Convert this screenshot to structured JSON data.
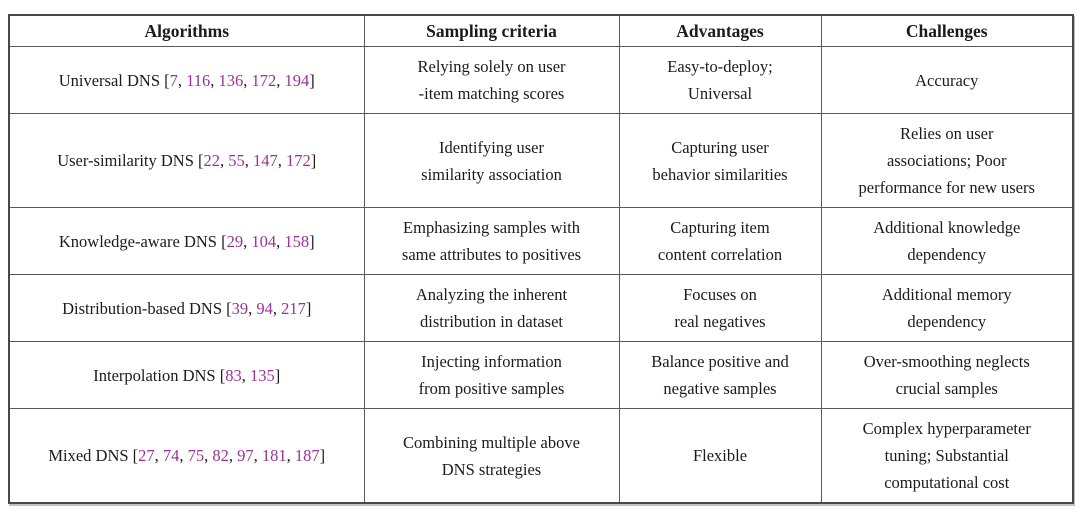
{
  "colors": {
    "text": "#1b1b1b",
    "citation": "#993399",
    "border": "#5a5a5a"
  },
  "table": {
    "headers": [
      "Algorithms",
      "Sampling criteria",
      "Advantages",
      "Challenges"
    ],
    "punctuation": {
      "open": "[",
      "close": "]",
      "separator": ", "
    },
    "rows": [
      {
        "algorithm": "Universal DNS",
        "citations": [
          "7",
          "116",
          "136",
          "172",
          "194"
        ],
        "sampling_criteria": [
          "Relying solely on user",
          "-item matching scores"
        ],
        "advantages": [
          "Easy-to-deploy;",
          "Universal"
        ],
        "challenges": [
          "Accuracy"
        ]
      },
      {
        "algorithm": "User-similarity DNS",
        "citations": [
          "22",
          "55",
          "147",
          "172"
        ],
        "sampling_criteria": [
          "Identifying user",
          "similarity association"
        ],
        "advantages": [
          "Capturing user",
          "behavior similarities"
        ],
        "challenges": [
          "Relies on user",
          "associations; Poor",
          "performance for new users"
        ]
      },
      {
        "algorithm": "Knowledge-aware DNS",
        "citations": [
          "29",
          "104",
          "158"
        ],
        "sampling_criteria": [
          "Emphasizing samples with",
          "same attributes to positives"
        ],
        "advantages": [
          "Capturing item",
          "content correlation"
        ],
        "challenges": [
          "Additional knowledge",
          "dependency"
        ]
      },
      {
        "algorithm": "Distribution-based DNS",
        "citations": [
          "39",
          "94",
          "217"
        ],
        "sampling_criteria": [
          "Analyzing the inherent",
          "distribution in dataset"
        ],
        "advantages": [
          "Focuses on",
          "real negatives"
        ],
        "challenges": [
          "Additional memory",
          "dependency"
        ]
      },
      {
        "algorithm": "Interpolation DNS",
        "citations": [
          "83",
          "135"
        ],
        "sampling_criteria": [
          "Injecting information",
          "from positive samples"
        ],
        "advantages": [
          "Balance positive and",
          "negative samples"
        ],
        "challenges": [
          "Over-smoothing neglects",
          "crucial samples"
        ]
      },
      {
        "algorithm": "Mixed DNS",
        "citations": [
          "27",
          "74",
          "75",
          "82",
          "97",
          "181",
          "187"
        ],
        "sampling_criteria": [
          "Combining multiple above",
          "DNS strategies"
        ],
        "advantages": [
          "Flexible"
        ],
        "challenges": [
          "Complex hyperparameter",
          "tuning; Substantial",
          "computational cost"
        ]
      }
    ]
  }
}
